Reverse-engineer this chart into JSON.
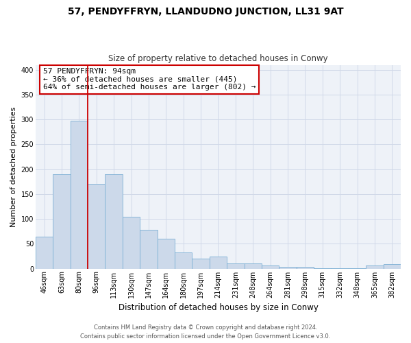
{
  "title": "57, PENDYFFRYN, LLANDUDNO JUNCTION, LL31 9AT",
  "subtitle": "Size of property relative to detached houses in Conwy",
  "xlabel": "Distribution of detached houses by size in Conwy",
  "ylabel": "Number of detached properties",
  "categories": [
    "46sqm",
    "63sqm",
    "80sqm",
    "96sqm",
    "113sqm",
    "130sqm",
    "147sqm",
    "164sqm",
    "180sqm",
    "197sqm",
    "214sqm",
    "231sqm",
    "248sqm",
    "264sqm",
    "281sqm",
    "298sqm",
    "315sqm",
    "332sqm",
    "348sqm",
    "365sqm",
    "382sqm"
  ],
  "values": [
    65,
    190,
    298,
    170,
    190,
    105,
    78,
    60,
    32,
    20,
    25,
    10,
    10,
    6,
    4,
    4,
    1,
    1,
    1,
    7,
    9
  ],
  "bar_color": "#ccd9ea",
  "bar_edge_color": "#7bafd4",
  "vline_x": 2.5,
  "vline_color": "#cc0000",
  "ylim": [
    0,
    410
  ],
  "yticks": [
    0,
    50,
    100,
    150,
    200,
    250,
    300,
    350,
    400
  ],
  "annotation_title": "57 PENDYFFRYN: 94sqm",
  "annotation_line1": "← 36% of detached houses are smaller (445)",
  "annotation_line2": "64% of semi-detached houses are larger (802) →",
  "annotation_box_color": "#ffffff",
  "annotation_box_edge": "#cc0000",
  "footer1": "Contains HM Land Registry data © Crown copyright and database right 2024.",
  "footer2": "Contains public sector information licensed under the Open Government Licence v3.0.",
  "background_color": "#ffffff",
  "plot_bg_color": "#eef2f8",
  "grid_color": "#d0d8e8",
  "title_fontsize": 10,
  "subtitle_fontsize": 8.5,
  "ylabel_fontsize": 8,
  "xlabel_fontsize": 8.5,
  "tick_fontsize": 7,
  "footer_fontsize": 6,
  "annotation_fontsize": 8
}
